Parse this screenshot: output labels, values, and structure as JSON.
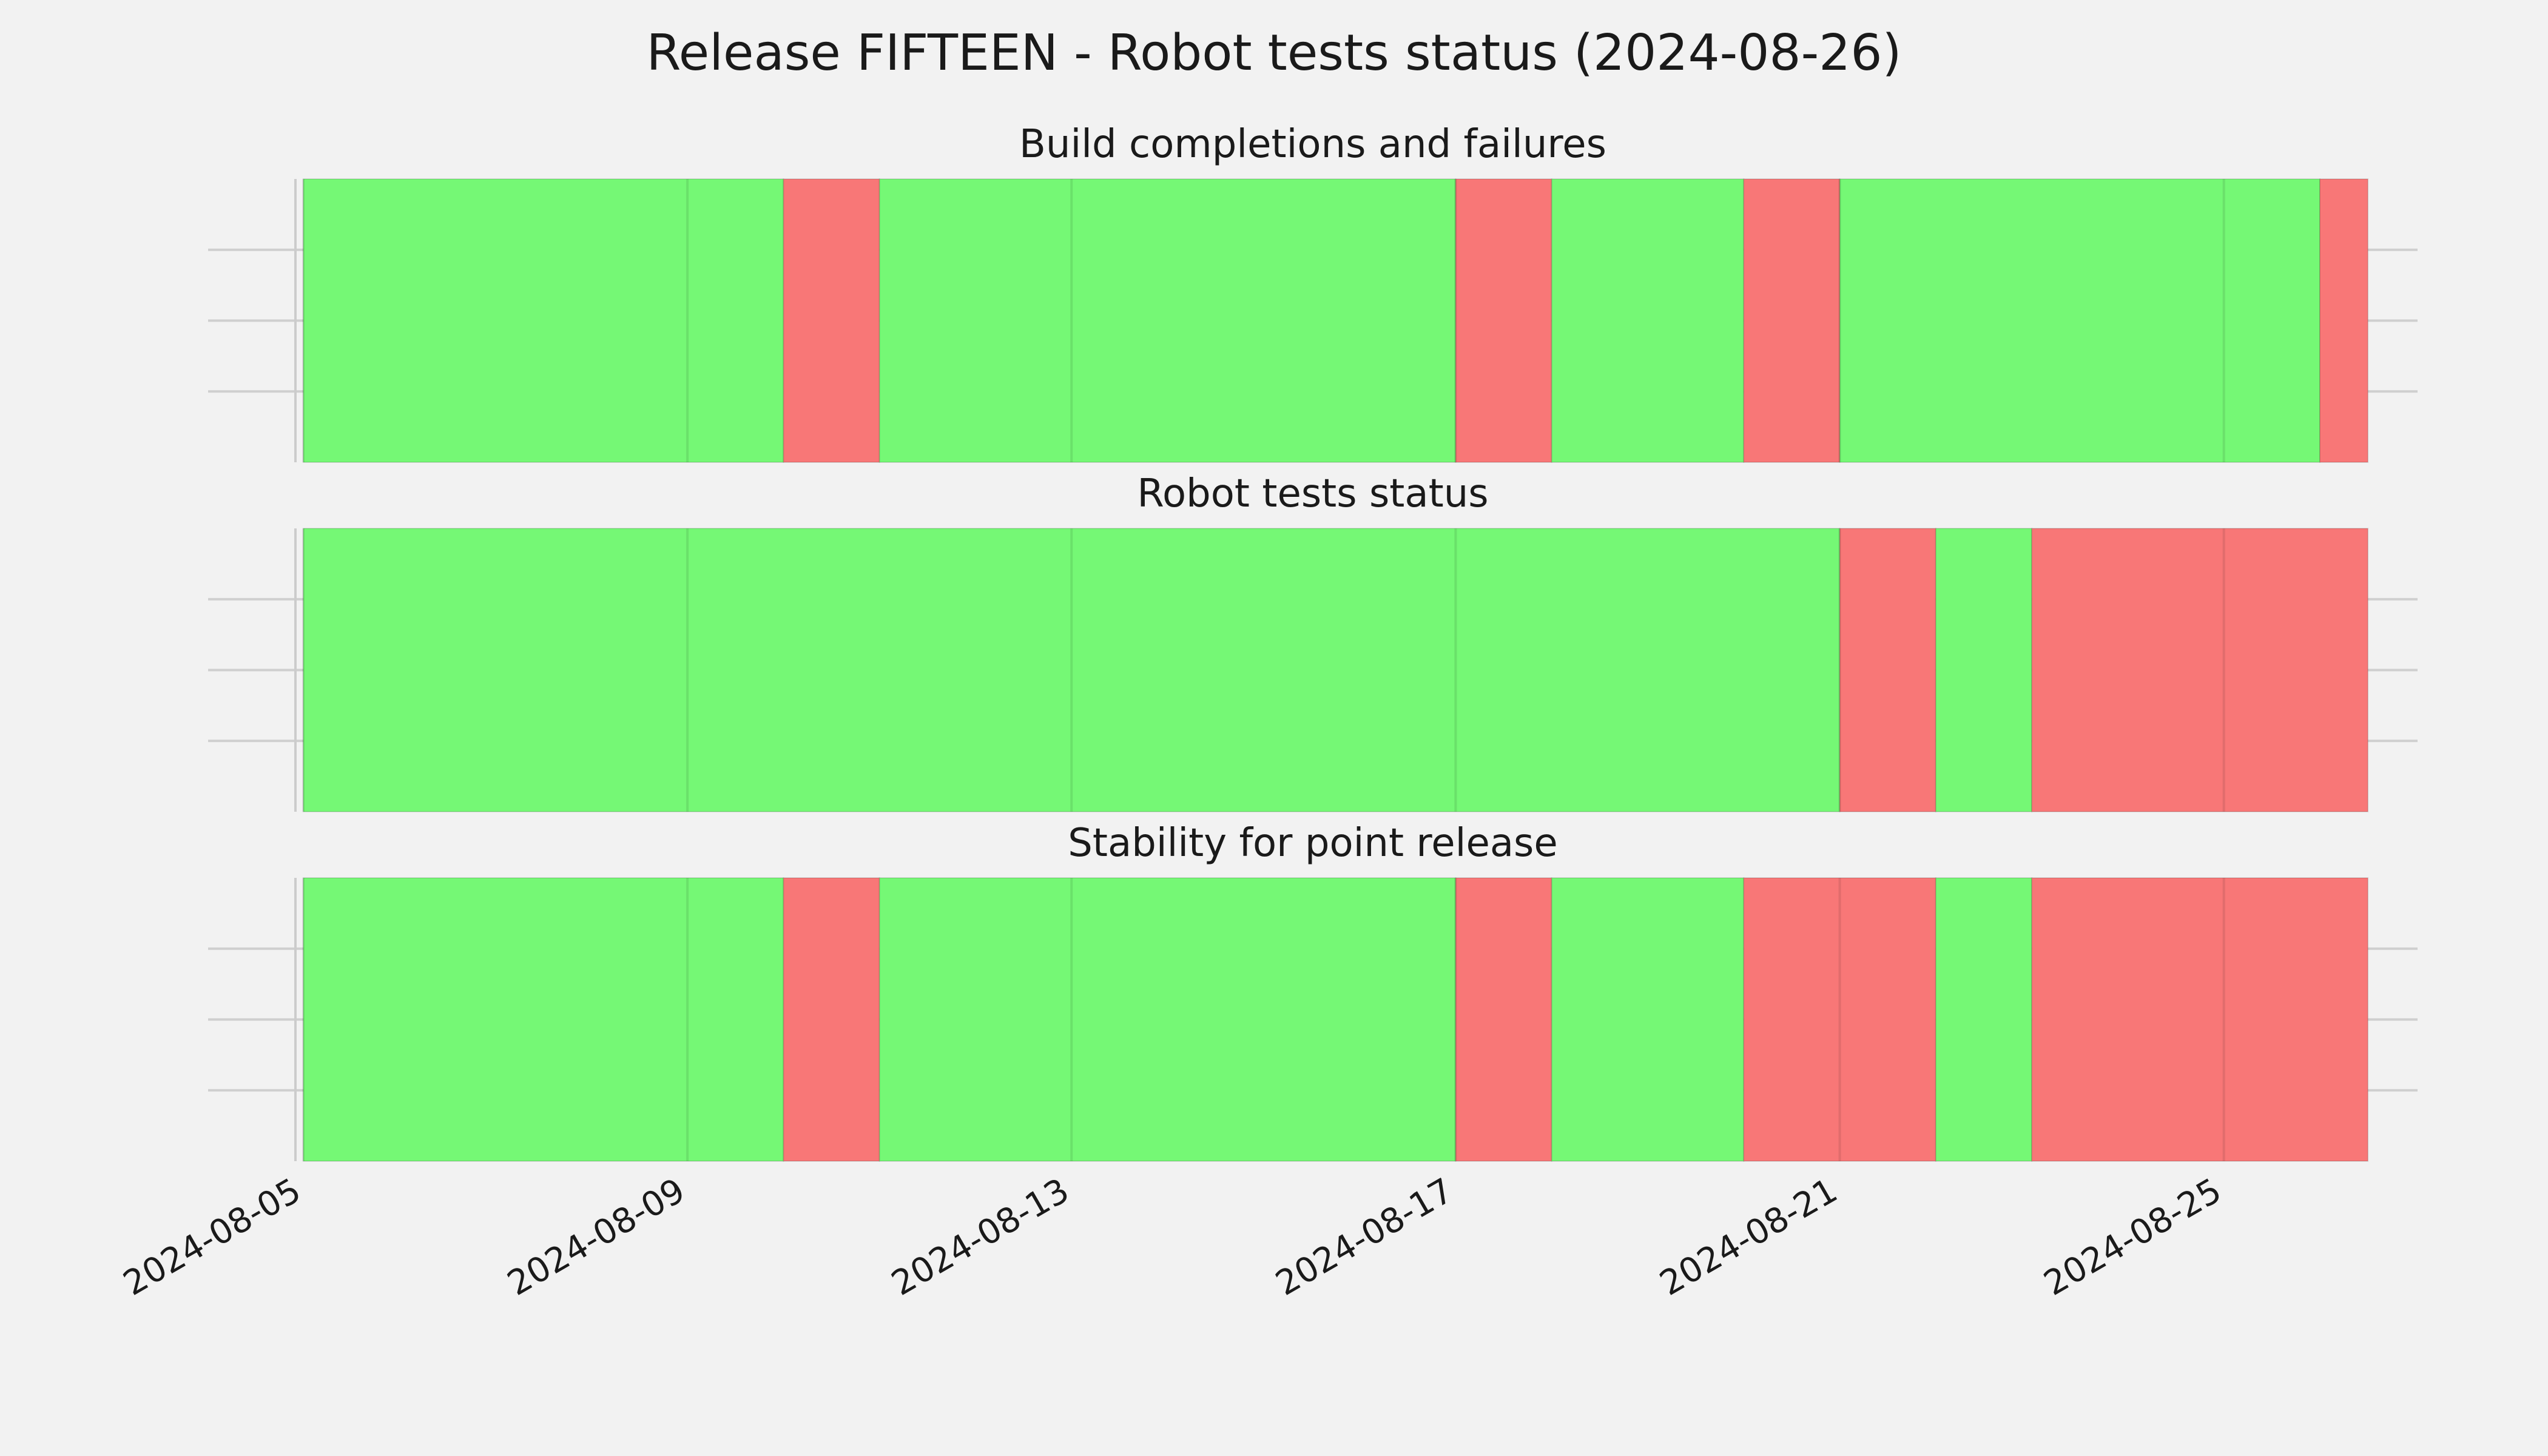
{
  "title": "Release FIFTEEN - Robot tests status (2024-08-26)",
  "colors": {
    "pass": "#75f875",
    "fail": "#f87777",
    "background": "#f2f2f2",
    "grid": "#cfcfcf"
  },
  "chart_data": [
    {
      "type": "bar",
      "title": "Build completions and failures",
      "x_range": [
        "2024-08-05",
        "2024-08-26"
      ],
      "grid": true,
      "segments": [
        {
          "start": "2024-08-05",
          "end": "2024-08-10",
          "status": "pass"
        },
        {
          "start": "2024-08-10",
          "end": "2024-08-11",
          "status": "fail"
        },
        {
          "start": "2024-08-11",
          "end": "2024-08-17",
          "status": "pass"
        },
        {
          "start": "2024-08-17",
          "end": "2024-08-18",
          "status": "fail"
        },
        {
          "start": "2024-08-18",
          "end": "2024-08-20",
          "status": "pass"
        },
        {
          "start": "2024-08-20",
          "end": "2024-08-21",
          "status": "fail"
        },
        {
          "start": "2024-08-21",
          "end": "2024-08-26",
          "status": "pass"
        },
        {
          "start": "2024-08-26",
          "end": "2024-08-26T12:00",
          "status": "fail"
        }
      ]
    },
    {
      "type": "bar",
      "title": "Robot tests status",
      "x_range": [
        "2024-08-05",
        "2024-08-26"
      ],
      "grid": true,
      "segments": [
        {
          "start": "2024-08-05",
          "end": "2024-08-21",
          "status": "pass"
        },
        {
          "start": "2024-08-21",
          "end": "2024-08-22",
          "status": "fail"
        },
        {
          "start": "2024-08-22",
          "end": "2024-08-23",
          "status": "pass"
        },
        {
          "start": "2024-08-23",
          "end": "2024-08-26T12:00",
          "status": "fail"
        }
      ]
    },
    {
      "type": "bar",
      "title": "Stability for point release",
      "x_range": [
        "2024-08-05",
        "2024-08-26"
      ],
      "grid": true,
      "x_ticks": [
        "2024-08-05",
        "2024-08-09",
        "2024-08-13",
        "2024-08-17",
        "2024-08-21",
        "2024-08-25"
      ],
      "segments": [
        {
          "start": "2024-08-05",
          "end": "2024-08-10",
          "status": "pass"
        },
        {
          "start": "2024-08-10",
          "end": "2024-08-11",
          "status": "fail"
        },
        {
          "start": "2024-08-11",
          "end": "2024-08-17",
          "status": "pass"
        },
        {
          "start": "2024-08-17",
          "end": "2024-08-18",
          "status": "fail"
        },
        {
          "start": "2024-08-18",
          "end": "2024-08-20",
          "status": "pass"
        },
        {
          "start": "2024-08-20",
          "end": "2024-08-22",
          "status": "fail"
        },
        {
          "start": "2024-08-22",
          "end": "2024-08-23",
          "status": "pass"
        },
        {
          "start": "2024-08-23",
          "end": "2024-08-26T12:00",
          "status": "fail"
        }
      ]
    }
  ]
}
